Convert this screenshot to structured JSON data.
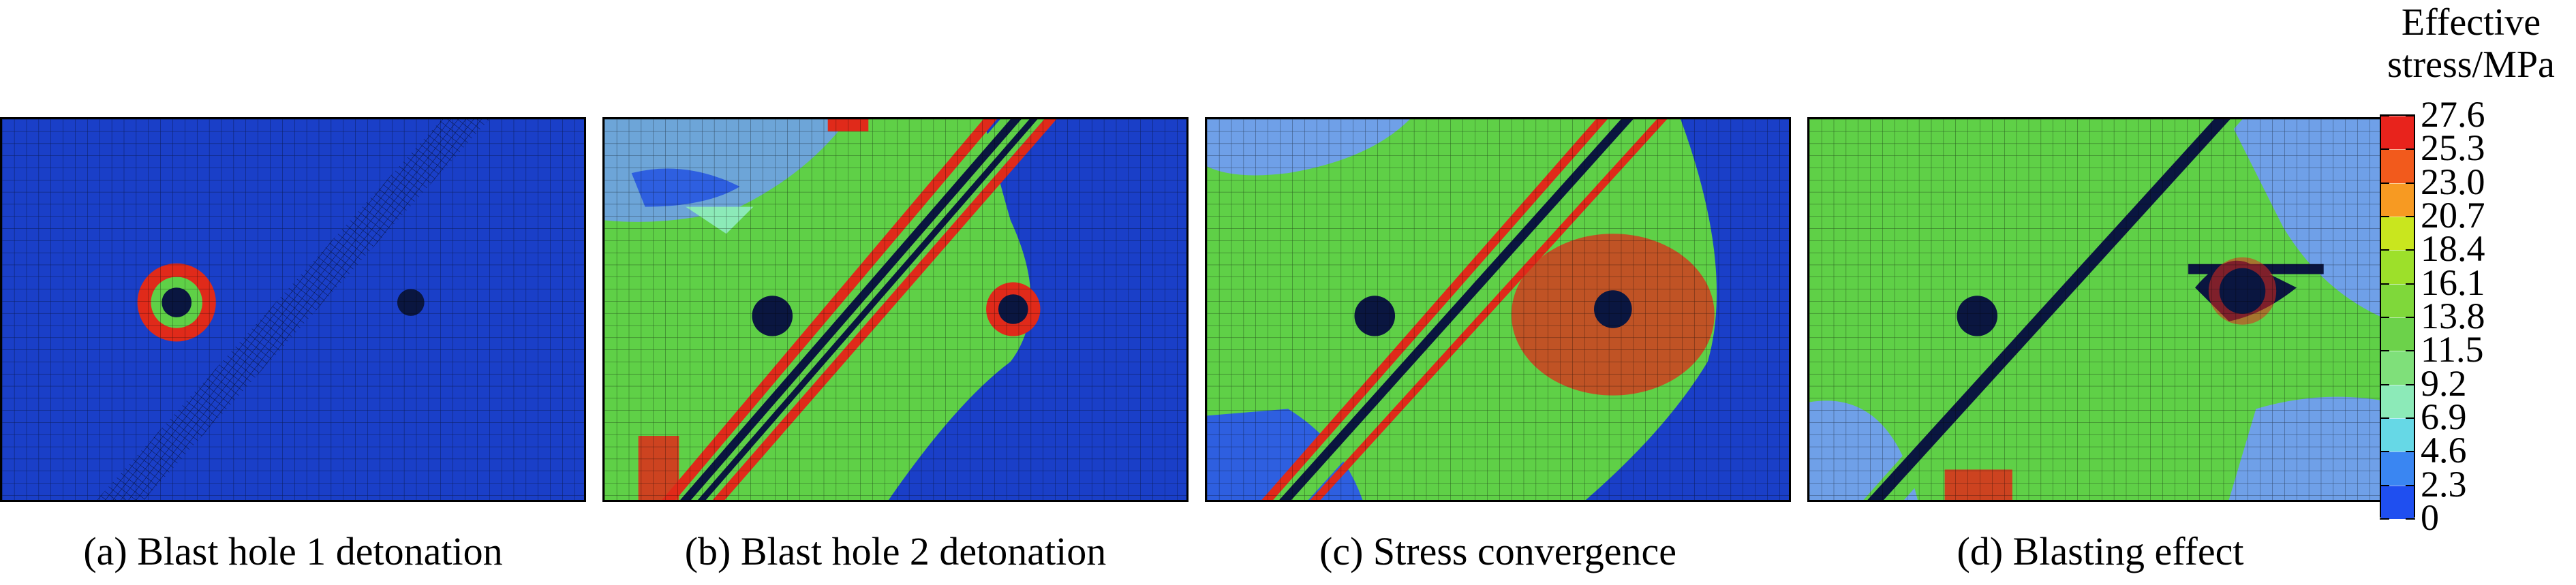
{
  "legend": {
    "title_line1": "Effective",
    "title_line2": "stress/MPa",
    "ticks": [
      "27.6",
      "25.3",
      "23.0",
      "20.7",
      "18.4",
      "16.1",
      "13.8",
      "11.5",
      "9.2",
      "6.9",
      "4.6",
      "2.3",
      "0"
    ],
    "colors": [
      "#e8231c",
      "#f25a1c",
      "#f79a22",
      "#c9e61e",
      "#9de02a",
      "#7fd83a",
      "#6cd24a",
      "#7fe07a",
      "#8ceab8",
      "#66d8e6",
      "#3a86f2",
      "#1f4ff0"
    ]
  },
  "panels": [
    {
      "caption": "(a) Blast hole 1 detonation"
    },
    {
      "caption": "(b) Blast hole 2 detonation"
    },
    {
      "caption": "(c) Stress convergence"
    },
    {
      "caption": "(d) Blasting effect"
    }
  ],
  "colors": {
    "low": "#1a3fc8",
    "mid": "#5fd047",
    "high": "#e02a1a",
    "mesh": "#000000",
    "crater": "#0a1640"
  }
}
